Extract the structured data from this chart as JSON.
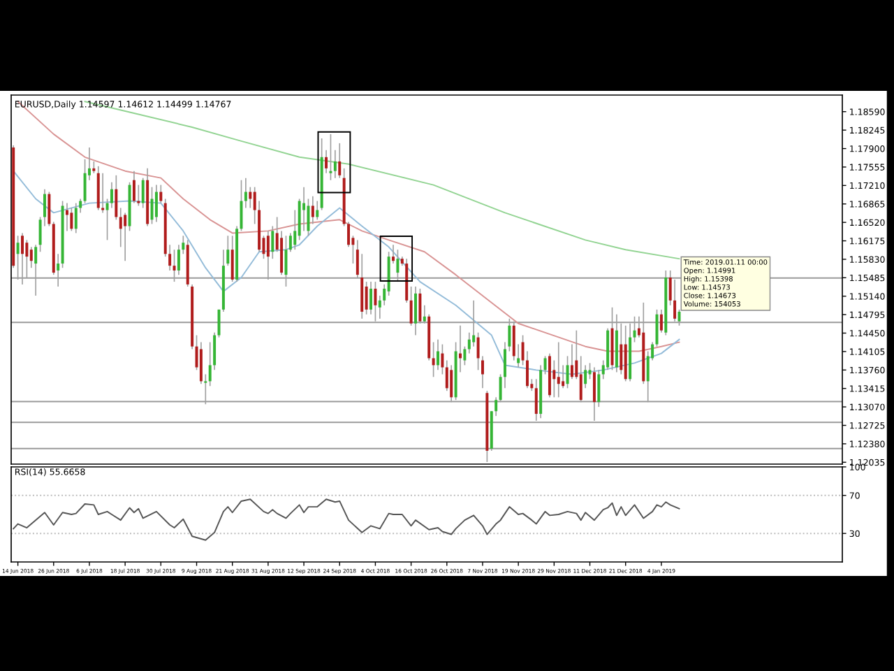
{
  "chart_data": [
    {
      "type": "candlestick",
      "title": "EURUSD,Daily 1.14597 1.14612 1.14499 1.14767",
      "categories": [
        null,
        null,
        null,
        null,
        null,
        null,
        null,
        null,
        null,
        null,
        null,
        null,
        null,
        null,
        null,
        null,
        null,
        null,
        null,
        null,
        null,
        null,
        null,
        null,
        null,
        null,
        null,
        null,
        null,
        null,
        null,
        null,
        null,
        null,
        null,
        null,
        null,
        null,
        null,
        null,
        null,
        null,
        null,
        null,
        null,
        null,
        null,
        null,
        null,
        null,
        null,
        null,
        null,
        null,
        null,
        null,
        null,
        null,
        null,
        null,
        null,
        null,
        null,
        null,
        null,
        null,
        null,
        null,
        null,
        null,
        null,
        null,
        null,
        null,
        null,
        null,
        null,
        null,
        null,
        null,
        null,
        null,
        null,
        null,
        null,
        null,
        null,
        null,
        null,
        null,
        null,
        null,
        null,
        null,
        null,
        null,
        null,
        null,
        null,
        null,
        null,
        null,
        null,
        null,
        null,
        null,
        null,
        null,
        null,
        null,
        null,
        null,
        null,
        null,
        null,
        null,
        null,
        null,
        null,
        null,
        null,
        null,
        null,
        null,
        null,
        null,
        null,
        null,
        null,
        null,
        null,
        null,
        null,
        null,
        null,
        null,
        null,
        null,
        null,
        null,
        null,
        null,
        null,
        null,
        null,
        null,
        null,
        null,
        null,
        null,
        null,
        null,
        null,
        null,
        null,
        null,
        null,
        null,
        null,
        null,
        null,
        null,
        null,
        null,
        null,
        null,
        null,
        null,
        null,
        null,
        null,
        null,
        null,
        null,
        null,
        null,
        null,
        null,
        null,
        null,
        null,
        null,
        null,
        null,
        null,
        null
      ],
      "ohlc": [
        [
          1.1792,
          1.1796,
          1.1567,
          1.1571
        ],
        [
          1.1593,
          1.1627,
          1.1545,
          1.1614
        ],
        [
          1.1627,
          1.1632,
          1.1536,
          1.1593
        ],
        [
          1.1614,
          1.1619,
          1.1549,
          1.1588
        ],
        [
          1.1601,
          1.1606,
          1.1567,
          1.158
        ],
        [
          1.1575,
          1.161,
          1.1515,
          1.1606
        ],
        [
          1.161,
          1.1662,
          1.1597,
          1.1657
        ],
        [
          1.1662,
          1.1714,
          1.1645,
          1.1705
        ],
        [
          1.1705,
          1.1709,
          1.1645,
          1.1649
        ],
        [
          1.1649,
          1.1653,
          1.1554,
          1.1558
        ],
        [
          1.1562,
          1.1593,
          1.1532,
          1.1575
        ],
        [
          1.1575,
          1.1692,
          1.1567,
          1.1683
        ],
        [
          1.1675,
          1.1688,
          1.1636,
          1.1666
        ],
        [
          1.167,
          1.1679,
          1.1636,
          1.164
        ],
        [
          1.164,
          1.1688,
          1.1632,
          1.1679
        ],
        [
          1.1679,
          1.1696,
          1.167,
          1.1692
        ],
        [
          1.1692,
          1.177,
          1.1688,
          1.1744
        ],
        [
          1.174,
          1.1792,
          1.1731,
          1.1753
        ],
        [
          1.1753,
          1.1766,
          1.1744,
          1.1748
        ],
        [
          1.1744,
          1.1757,
          1.1675,
          1.1679
        ],
        [
          1.1679,
          1.1744,
          1.167,
          1.1675
        ],
        [
          1.1675,
          1.1696,
          1.1619,
          1.1688
        ],
        [
          1.1688,
          1.1727,
          1.1679,
          1.1714
        ],
        [
          1.1714,
          1.174,
          1.1657,
          1.1662
        ],
        [
          1.1662,
          1.1679,
          1.1606,
          1.164
        ],
        [
          1.1666,
          1.167,
          1.158,
          1.1645
        ],
        [
          1.1645,
          1.1727,
          1.1636,
          1.1722
        ],
        [
          1.1731,
          1.1748,
          1.1688,
          1.1692
        ],
        [
          1.1692,
          1.1722,
          1.1683,
          1.1688
        ],
        [
          1.1688,
          1.1735,
          1.1679,
          1.1731
        ],
        [
          1.1731,
          1.1753,
          1.1645,
          1.1649
        ],
        [
          1.1657,
          1.1718,
          1.1649,
          1.1696
        ],
        [
          1.1662,
          1.1722,
          1.1653,
          1.1709
        ],
        [
          1.1709,
          1.1722,
          1.1688,
          1.1692
        ],
        [
          1.1688,
          1.1696,
          1.1588,
          1.1593
        ],
        [
          1.1593,
          1.161,
          1.1562,
          1.1571
        ],
        [
          1.1571,
          1.1601,
          1.1541,
          1.1562
        ],
        [
          1.1562,
          1.161,
          1.1554,
          1.1601
        ],
        [
          1.1601,
          1.1627,
          1.1593,
          1.1614
        ],
        [
          1.161,
          1.1619,
          1.1532,
          1.1536
        ],
        [
          1.1532,
          1.1536,
          1.1415,
          1.142
        ],
        [
          1.142,
          1.1441,
          1.1376,
          1.1381
        ],
        [
          1.1415,
          1.1428,
          1.135,
          1.1355
        ],
        [
          1.1352,
          1.1368,
          1.1312,
          1.1355
        ],
        [
          1.1355,
          1.1428,
          1.1346,
          1.1385
        ],
        [
          1.1385,
          1.1446,
          1.1376,
          1.1441
        ],
        [
          1.1441,
          1.1489,
          1.1437,
          1.1489
        ],
        [
          1.1489,
          1.1601,
          1.1485,
          1.1571
        ],
        [
          1.1575,
          1.1627,
          1.1571,
          1.1601
        ],
        [
          1.1601,
          1.1627,
          1.1541,
          1.1545
        ],
        [
          1.1545,
          1.1645,
          1.1541,
          1.164
        ],
        [
          1.164,
          1.1731,
          1.1636,
          1.1692
        ],
        [
          1.1692,
          1.1735,
          1.1679,
          1.1709
        ],
        [
          1.1709,
          1.1718,
          1.1679,
          1.1696
        ],
        [
          1.1709,
          1.1718,
          1.1649,
          1.1675
        ],
        [
          1.1675,
          1.1692,
          1.1597,
          1.1601
        ],
        [
          1.1623,
          1.1627,
          1.1584,
          1.1593
        ],
        [
          1.1627,
          1.1636,
          1.1545,
          1.1588
        ],
        [
          1.1597,
          1.1645,
          1.1584,
          1.1636
        ],
        [
          1.1632,
          1.1662,
          1.1597,
          1.1601
        ],
        [
          1.1623,
          1.1636,
          1.1554,
          1.1558
        ],
        [
          1.1554,
          1.1627,
          1.1532,
          1.1601
        ],
        [
          1.1601,
          1.1632,
          1.1597,
          1.1627
        ],
        [
          1.161,
          1.1675,
          1.1601,
          1.1636
        ],
        [
          1.1627,
          1.1696,
          1.1619,
          1.1692
        ],
        [
          1.1675,
          1.1718,
          1.1636,
          1.1688
        ],
        [
          1.1636,
          1.1696,
          1.1627,
          1.1683
        ],
        [
          1.1683,
          1.1701,
          1.1649,
          1.1662
        ],
        [
          1.1662,
          1.1692,
          1.1657,
          1.1675
        ],
        [
          1.1679,
          1.1809,
          1.1675,
          1.1774
        ],
        [
          1.1774,
          1.1787,
          1.1744,
          1.1753
        ],
        [
          1.1744,
          1.1817,
          1.1731,
          1.1748
        ],
        [
          1.1748,
          1.1787,
          1.1735,
          1.1766
        ],
        [
          1.1766,
          1.18,
          1.1735,
          1.174
        ],
        [
          1.1735,
          1.1753,
          1.1645,
          1.1649
        ],
        [
          1.1649,
          1.1653,
          1.1606,
          1.161
        ],
        [
          1.1623,
          1.1627,
          1.1575,
          1.161
        ],
        [
          1.1601,
          1.1619,
          1.1549,
          1.1554
        ],
        [
          1.1549,
          1.1593,
          1.1472,
          1.1485
        ],
        [
          1.1532,
          1.1541,
          1.148,
          1.1489
        ],
        [
          1.1489,
          1.1541,
          1.148,
          1.1528
        ],
        [
          1.1528,
          1.1541,
          1.1467,
          1.1497
        ],
        [
          1.1493,
          1.1515,
          1.1472,
          1.1506
        ],
        [
          1.1506,
          1.1536,
          1.1497,
          1.1528
        ],
        [
          1.1523,
          1.1597,
          1.1515,
          1.1588
        ],
        [
          1.1588,
          1.161,
          1.1575,
          1.158
        ],
        [
          1.1558,
          1.1601,
          1.1541,
          1.1584
        ],
        [
          1.1584,
          1.1588,
          1.1571,
          1.1575
        ],
        [
          1.1575,
          1.1584,
          1.1502,
          1.1506
        ],
        [
          1.1506,
          1.1532,
          1.1459,
          1.1463
        ],
        [
          1.1463,
          1.1532,
          1.1441,
          1.1519
        ],
        [
          1.1519,
          1.1528,
          1.1463,
          1.1467
        ],
        [
          1.1467,
          1.1497,
          1.1463,
          1.1476
        ],
        [
          1.1476,
          1.148,
          1.1394,
          1.1398
        ],
        [
          1.1398,
          1.1428,
          1.1363,
          1.1385
        ],
        [
          1.1385,
          1.1433,
          1.1376,
          1.1411
        ],
        [
          1.1407,
          1.1424,
          1.1368,
          1.1381
        ],
        [
          1.1381,
          1.1394,
          1.1337,
          1.1342
        ],
        [
          1.1376,
          1.1385,
          1.1316,
          1.1325
        ],
        [
          1.1325,
          1.1428,
          1.132,
          1.1411
        ],
        [
          1.1407,
          1.1459,
          1.1372,
          1.1398
        ],
        [
          1.1394,
          1.142,
          1.1385,
          1.1415
        ],
        [
          1.1415,
          1.1446,
          1.1407,
          1.1433
        ],
        [
          1.1428,
          1.1506,
          1.142,
          1.1441
        ],
        [
          1.1437,
          1.1446,
          1.1376,
          1.1398
        ],
        [
          1.1394,
          1.1402,
          1.1342,
          1.1368
        ],
        [
          1.1333,
          1.1337,
          1.1204,
          1.1225
        ],
        [
          1.1229,
          1.1299,
          1.1225,
          1.1299
        ],
        [
          1.1299,
          1.1325,
          1.129,
          1.132
        ],
        [
          1.132,
          1.1368,
          1.1316,
          1.1363
        ],
        [
          1.1363,
          1.1428,
          1.1342,
          1.1415
        ],
        [
          1.142,
          1.1472,
          1.1411,
          1.1459
        ],
        [
          1.1459,
          1.1467,
          1.1394,
          1.1402
        ],
        [
          1.1389,
          1.1424,
          1.1381,
          1.1398
        ],
        [
          1.1428,
          1.1441,
          1.1385,
          1.1394
        ],
        [
          1.1394,
          1.1411,
          1.1342,
          1.1346
        ],
        [
          1.135,
          1.1359,
          1.1337,
          1.1342
        ],
        [
          1.1342,
          1.1359,
          1.1281,
          1.1294
        ],
        [
          1.1294,
          1.1385,
          1.1286,
          1.1376
        ],
        [
          1.1376,
          1.1402,
          1.1368,
          1.1398
        ],
        [
          1.1402,
          1.1407,
          1.1325,
          1.1329
        ],
        [
          1.1376,
          1.1394,
          1.1325,
          1.1359
        ],
        [
          1.1363,
          1.1428,
          1.1325,
          1.135
        ],
        [
          1.1355,
          1.1385,
          1.1342,
          1.1346
        ],
        [
          1.135,
          1.1402,
          1.1342,
          1.1385
        ],
        [
          1.1385,
          1.1424,
          1.1359,
          1.1363
        ],
        [
          1.1394,
          1.145,
          1.1359,
          1.1363
        ],
        [
          1.1368,
          1.1402,
          1.1316,
          1.132
        ],
        [
          1.135,
          1.1385,
          1.1342,
          1.1376
        ],
        [
          1.1368,
          1.1389,
          1.1359,
          1.1376
        ],
        [
          1.1372,
          1.1381,
          1.1281,
          1.1316
        ],
        [
          1.1316,
          1.1376,
          1.1307,
          1.1368
        ],
        [
          1.1368,
          1.1394,
          1.1359,
          1.1385
        ],
        [
          1.1381,
          1.1454,
          1.1376,
          1.145
        ],
        [
          1.1454,
          1.1493,
          1.1376,
          1.1385
        ],
        [
          1.1381,
          1.148,
          1.1372,
          1.145
        ],
        [
          1.1424,
          1.1463,
          1.1368,
          1.1376
        ],
        [
          1.1424,
          1.1459,
          1.1355,
          1.1359
        ],
        [
          1.1359,
          1.1463,
          1.1355,
          1.1437
        ],
        [
          1.1437,
          1.1476,
          1.1428,
          1.145
        ],
        [
          1.1454,
          1.1476,
          1.1437,
          1.1441
        ],
        [
          1.1446,
          1.1502,
          1.135,
          1.1355
        ],
        [
          1.1355,
          1.1411,
          1.1316,
          1.1402
        ],
        [
          1.1398,
          1.1428,
          1.1394,
          1.1424
        ],
        [
          1.1424,
          1.1489,
          1.142,
          1.148
        ],
        [
          1.148,
          1.1489,
          1.1446,
          1.145
        ],
        [
          1.1446,
          1.1562,
          1.1441,
          1.1549
        ],
        [
          1.1549,
          1.1562,
          1.1497,
          1.1506
        ],
        [
          1.1506,
          1.1545,
          1.1467,
          1.1472
        ],
        [
          1.1467,
          1.1489,
          1.1459,
          1.1485
        ],
        null,
        null,
        null,
        null,
        null,
        null,
        null,
        null,
        null,
        null,
        null,
        null,
        null,
        null,
        null,
        null,
        null,
        null,
        null,
        null,
        null,
        null,
        null,
        null,
        null,
        null,
        null,
        null,
        null,
        null,
        null,
        null,
        null,
        null,
        null,
        null
      ],
      "series": [
        {
          "type": "line",
          "color": "#93d493",
          "values": [
            null,
            null,
            null,
            null,
            null,
            null,
            null,
            null,
            null,
            null,
            null,
            null,
            null,
            null,
            null,
            null,
            1.1878,
            null,
            null,
            null,
            null,
            null,
            null,
            null,
            null,
            null,
            null,
            1.1856,
            null,
            null,
            null,
            null,
            null,
            null,
            null,
            null,
            null,
            null,
            null,
            null,
            1.183,
            null,
            null,
            null,
            null,
            null,
            null,
            null,
            null,
            null,
            null,
            1.1804,
            null,
            null,
            null,
            null,
            null,
            null,
            null,
            null,
            null,
            null,
            null,
            null,
            1.1774,
            null,
            null,
            null,
            null,
            null,
            null,
            null,
            null,
            null,
            null,
            1.1761,
            null,
            null,
            null,
            null,
            null,
            null,
            null,
            null,
            null,
            null,
            null,
            null,
            null,
            null,
            null,
            null,
            null,
            null,
            1.1722,
            null,
            null,
            null,
            null,
            null,
            null,
            null,
            null,
            null,
            null,
            null,
            null,
            null,
            null,
            null,
            1.167,
            null,
            null,
            null,
            null,
            null,
            null,
            null,
            null,
            null,
            null,
            null,
            null,
            null,
            null,
            null,
            null,
            null,
            1.1619,
            null,
            null,
            null,
            null,
            null,
            null,
            null,
            null,
            1.1601,
            null,
            null,
            null,
            null,
            null,
            null,
            null,
            null,
            null,
            null,
            null,
            1.1584,
            null,
            null,
            null,
            null,
            null,
            null,
            null,
            null,
            null,
            null,
            null,
            null,
            null,
            null,
            null,
            null,
            null,
            null,
            null,
            null,
            null,
            null,
            null,
            null,
            null,
            null,
            null,
            null,
            null,
            null,
            null,
            null,
            null,
            null,
            null,
            null
          ]
        },
        {
          "type": "line",
          "color": "#d99494",
          "values": [
            null,
            1.1878,
            null,
            null,
            null,
            null,
            null,
            null,
            null,
            1.1817,
            null,
            null,
            null,
            null,
            null,
            null,
            1.1774,
            null,
            null,
            null,
            null,
            null,
            null,
            null,
            null,
            1.1748,
            null,
            null,
            null,
            null,
            null,
            null,
            null,
            1.1735,
            null,
            null,
            null,
            null,
            1.1696,
            null,
            null,
            null,
            null,
            null,
            1.1657,
            null,
            null,
            null,
            null,
            1.1632,
            null,
            null,
            null,
            null,
            null,
            null,
            null,
            1.1636,
            null,
            null,
            null,
            null,
            null,
            null,
            1.1649,
            null,
            null,
            null,
            null,
            null,
            null,
            null,
            null,
            1.1657,
            null,
            null,
            null,
            null,
            1.1636,
            null,
            null,
            null,
            null,
            null,
            1.1619,
            null,
            null,
            null,
            null,
            null,
            null,
            null,
            1.1597,
            null,
            null,
            null,
            null,
            null,
            null,
            1.1554,
            null,
            null,
            null,
            null,
            null,
            null,
            null,
            1.1502,
            null,
            null,
            null,
            null,
            null,
            1.1463,
            null,
            null,
            null,
            null,
            null,
            null,
            null,
            null,
            null,
            null,
            null,
            null,
            null,
            null,
            1.142,
            null,
            null,
            null,
            null,
            1.1411,
            null,
            null,
            null,
            null,
            null,
            null,
            1.1411,
            null,
            null,
            null,
            null,
            1.142,
            null,
            null,
            null,
            1.1428,
            null,
            null,
            null,
            null,
            null,
            null,
            null,
            null,
            null,
            null,
            null,
            null,
            null,
            null,
            null,
            null,
            null,
            null,
            null,
            null,
            null,
            null,
            null,
            null,
            null,
            null,
            null,
            null,
            null,
            null,
            null,
            null,
            null,
            null,
            null,
            null
          ]
        },
        {
          "type": "line",
          "color": "#94bcd9",
          "values": [
            1.1748,
            null,
            null,
            null,
            null,
            1.1696,
            null,
            null,
            null,
            1.167,
            null,
            null,
            null,
            null,
            null,
            null,
            null,
            1.1688,
            null,
            null,
            null,
            null,
            null,
            null,
            null,
            null,
            1.1692,
            null,
            null,
            null,
            null,
            null,
            null,
            1.1688,
            null,
            null,
            null,
            null,
            1.1636,
            null,
            null,
            null,
            null,
            1.1567,
            null,
            null,
            null,
            1.1523,
            null,
            null,
            null,
            1.1549,
            null,
            null,
            null,
            1.1597,
            null,
            null,
            null,
            null,
            null,
            1.1601,
            null,
            null,
            1.161,
            null,
            null,
            null,
            1.1645,
            null,
            null,
            null,
            null,
            1.1679,
            null,
            null,
            null,
            null,
            1.1645,
            null,
            null,
            null,
            null,
            null,
            1.1606,
            null,
            null,
            null,
            null,
            null,
            null,
            1.1541,
            null,
            null,
            null,
            null,
            null,
            null,
            null,
            1.1497,
            null,
            null,
            null,
            null,
            null,
            null,
            null,
            1.1441,
            null,
            null,
            1.1385,
            null,
            null,
            null,
            null,
            null,
            null,
            1.1376,
            null,
            null,
            null,
            null,
            null,
            null,
            null,
            1.1368,
            null,
            null,
            null,
            null,
            null,
            null,
            1.1376,
            null,
            null,
            null,
            null,
            null,
            null,
            1.1389,
            null,
            null,
            null,
            null,
            null,
            1.1407,
            null,
            null,
            null,
            1.1433,
            null,
            null,
            null,
            null,
            null,
            null,
            null,
            null,
            null,
            null,
            null,
            null,
            null,
            null,
            null,
            null,
            null,
            null,
            null,
            null,
            null,
            null,
            null,
            null,
            null,
            null,
            null,
            null,
            null,
            null,
            null,
            null,
            null,
            null,
            null,
            null
          ]
        }
      ],
      "ylim": [
        1.12,
        1.189
      ],
      "yticks": [
        {
          "value": 1.1859,
          "label": "1.18590"
        },
        {
          "value": 1.18245,
          "label": "1.18245"
        },
        {
          "value": 1.179,
          "label": "1.17900"
        },
        {
          "value": 1.17555,
          "label": "1.17555"
        },
        {
          "value": 1.1721,
          "label": "1.17210"
        },
        {
          "value": 1.16865,
          "label": "1.16865"
        },
        {
          "value": 1.1652,
          "label": "1.16520"
        },
        {
          "value": 1.16175,
          "label": "1.16175"
        },
        {
          "value": 1.1583,
          "label": "1.15830"
        },
        {
          "value": 1.15485,
          "label": "1.15485"
        },
        {
          "value": 1.1514,
          "label": "1.15140"
        },
        {
          "value": 1.14795,
          "label": "1.14795"
        },
        {
          "value": 1.1445,
          "label": "1.14450"
        },
        {
          "value": 1.14105,
          "label": "1.14105"
        },
        {
          "value": 1.1376,
          "label": "1.13760"
        },
        {
          "value": 1.13415,
          "label": "1.13415"
        },
        {
          "value": 1.1307,
          "label": "1.13070"
        },
        {
          "value": 1.12725,
          "label": "1.12725"
        },
        {
          "value": 1.1238,
          "label": "1.12380"
        },
        {
          "value": 1.12035,
          "label": "1.12035"
        }
      ],
      "ref_lines": [
        {
          "axis": "y",
          "value": 1.1548,
          "color": "#9a9a9a"
        },
        {
          "axis": "y",
          "value": 1.1465,
          "color": "#9a9a9a"
        },
        {
          "axis": "y",
          "value": 1.1317,
          "color": "#9a9a9a"
        },
        {
          "axis": "y",
          "value": 1.1278,
          "color": "#9a9a9a"
        },
        {
          "axis": "y",
          "value": 1.1229,
          "color": "#9a9a9a"
        }
      ],
      "annotations": [
        "Time: 2019.01.11 00:00",
        "Open: 1.14991",
        "High: 1.15398",
        "Low: 1.14573",
        "Close: 1.14673",
        "Volume: 154053"
      ]
    },
    {
      "type": "line",
      "title": "RSI(14) 55.6658",
      "categories": [
        null,
        "14 Jun 2018",
        null,
        null,
        null,
        null,
        null,
        null,
        null,
        "26 Jun 2018",
        null,
        null,
        null,
        null,
        null,
        null,
        null,
        "6 Jul 2018",
        null,
        null,
        null,
        null,
        null,
        null,
        null,
        "18 Jul 2018",
        null,
        null,
        null,
        null,
        null,
        null,
        null,
        "30 Jul 2018",
        null,
        null,
        null,
        null,
        null,
        null,
        null,
        "9 Aug 2018",
        null,
        null,
        null,
        null,
        null,
        null,
        null,
        "21 Aug 2018",
        null,
        null,
        null,
        null,
        null,
        null,
        null,
        "31 Aug 2018",
        null,
        null,
        null,
        null,
        null,
        null,
        null,
        "12 Sep 2018",
        null,
        null,
        null,
        null,
        null,
        null,
        null,
        "24 Sep 2018",
        null,
        null,
        null,
        null,
        null,
        null,
        null,
        "4 Oct 2018",
        null,
        null,
        null,
        null,
        null,
        null,
        null,
        "16 Oct 2018",
        null,
        null,
        null,
        null,
        null,
        null,
        null,
        "26 Oct 2018",
        null,
        null,
        null,
        null,
        null,
        null,
        null,
        "7 Nov 2018",
        null,
        null,
        null,
        null,
        null,
        null,
        null,
        "19 Nov 2018",
        null,
        null,
        null,
        null,
        null,
        null,
        null,
        "29 Nov 2018",
        null,
        null,
        null,
        null,
        null,
        null,
        null,
        "11 Dec 2018",
        null,
        null,
        null,
        null,
        null,
        null,
        null,
        "21 Dec 2018",
        null,
        null,
        null,
        null,
        null,
        null,
        null,
        "4 Jan 2019",
        null,
        null,
        null,
        null,
        null,
        null,
        null,
        null,
        null,
        null,
        null,
        null,
        null,
        null,
        null,
        null,
        null,
        null,
        null,
        null,
        null,
        null,
        null,
        null,
        null,
        null,
        null,
        null,
        null,
        null,
        null,
        null,
        null,
        null,
        null,
        null,
        null,
        null,
        null,
        null
      ],
      "series": [
        {
          "color": "#555555",
          "values": [
            35,
            40,
            null,
            36,
            null,
            null,
            null,
            52,
            null,
            39,
            null,
            52,
            null,
            50,
            51,
            null,
            61,
            null,
            60,
            50,
            null,
            53,
            50,
            null,
            44,
            null,
            57,
            52,
            56,
            46,
            null,
            null,
            53,
            null,
            null,
            39,
            36,
            null,
            45,
            null,
            27,
            null,
            null,
            23,
            null,
            31,
            null,
            53,
            58,
            52,
            null,
            64,
            null,
            66,
            null,
            null,
            53,
            51,
            55,
            51,
            null,
            46,
            51,
            null,
            60,
            52,
            58,
            null,
            58,
            null,
            66,
            null,
            63,
            64,
            null,
            44,
            null,
            null,
            31,
            null,
            38,
            null,
            35,
            null,
            51,
            50,
            null,
            50,
            null,
            38,
            44,
            null,
            null,
            34,
            null,
            36,
            32,
            null,
            29,
            35,
            null,
            44,
            null,
            49,
            null,
            38,
            29,
            null,
            40,
            44,
            null,
            58,
            null,
            50,
            51,
            null,
            44,
            40,
            null,
            53,
            49,
            null,
            50,
            null,
            53,
            null,
            51,
            44,
            52,
            null,
            44,
            null,
            55,
            57,
            62,
            49,
            58,
            49,
            null,
            60,
            null,
            46,
            null,
            53,
            60,
            58,
            63,
            60,
            null,
            56,
            null,
            null,
            null,
            null,
            null,
            null,
            null,
            null,
            null,
            null,
            null,
            null,
            null,
            null,
            null,
            null,
            null,
            null,
            null,
            null,
            null,
            null,
            null,
            null,
            null,
            null,
            null,
            null,
            null,
            null,
            null,
            null,
            null,
            null,
            null,
            null
          ]
        }
      ],
      "ylim": [
        0,
        100
      ],
      "yticks": [
        30,
        70,
        100
      ],
      "ref_lines": [
        {
          "axis": "y",
          "value": 30,
          "color": "#bbbbbb",
          "line_style": "dotted"
        },
        {
          "axis": "y",
          "value": 70,
          "color": "#bbbbbb",
          "line_style": "dotted"
        }
      ]
    }
  ]
}
